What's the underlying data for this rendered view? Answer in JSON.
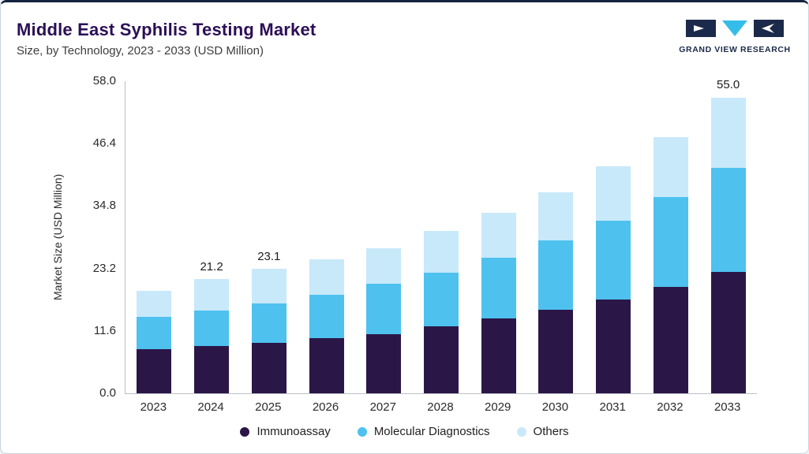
{
  "header": {
    "title": "Middle East Syphilis Testing Market",
    "subtitle": "Size, by Technology, 2023 - 2033 (USD Million)",
    "brand": "GRAND VIEW RESEARCH"
  },
  "colors": {
    "immunoassay": "#2b1747",
    "molecular_diagnostics": "#4ec1ef",
    "others": "#c8e9fa",
    "title": "#2c0f56",
    "brand_navy": "#1b2a4a",
    "brand_cyan": "#35bde9"
  },
  "chart_data": {
    "type": "bar",
    "stacked": true,
    "title": "Middle East Syphilis Testing Market Size, by Technology, 2023 - 2033 (USD Million)",
    "xlabel": "",
    "ylabel": "Market Size (USD Million)",
    "ylim": [
      0,
      58
    ],
    "yticks": [
      0.0,
      11.6,
      23.2,
      34.8,
      46.4,
      58.0
    ],
    "grid": false,
    "legend_position": "bottom",
    "categories": [
      "2023",
      "2024",
      "2025",
      "2026",
      "2027",
      "2028",
      "2029",
      "2030",
      "2031",
      "2032",
      "2033"
    ],
    "series": [
      {
        "name": "Immunoassay",
        "color": "#2b1747",
        "values": [
          8.2,
          8.8,
          9.4,
          10.2,
          11.0,
          12.4,
          13.9,
          15.5,
          17.4,
          19.8,
          22.5
        ]
      },
      {
        "name": "Molecular Diagnostics",
        "color": "#4ec1ef",
        "values": [
          6.0,
          6.6,
          7.3,
          8.1,
          9.4,
          10.0,
          11.3,
          12.9,
          14.7,
          16.7,
          19.4
        ]
      },
      {
        "name": "Others",
        "color": "#c8e9fa",
        "values": [
          4.8,
          5.8,
          6.4,
          6.6,
          6.5,
          7.8,
          8.3,
          8.9,
          10.1,
          11.1,
          13.1
        ]
      }
    ],
    "bar_labels": [
      "",
      "21.2",
      "23.1",
      "",
      "",
      "",
      "",
      "",
      "",
      "",
      "55.0"
    ]
  }
}
